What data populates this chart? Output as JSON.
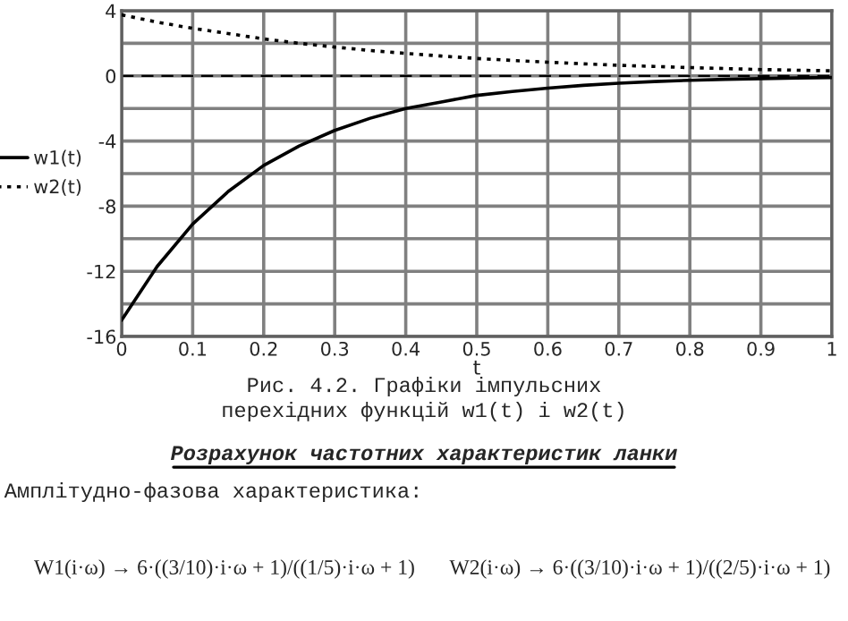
{
  "chart_data": {
    "type": "line",
    "xlabel": "t",
    "x": [
      0,
      0.05,
      0.1,
      0.15,
      0.2,
      0.25,
      0.3,
      0.35,
      0.4,
      0.45,
      0.5,
      0.55,
      0.6,
      0.65,
      0.7,
      0.75,
      0.8,
      0.85,
      0.9,
      0.95,
      1
    ],
    "series": [
      {
        "name": "w1(t)",
        "color": "#000000",
        "line_style": "solid",
        "values": [
          -15,
          -11.7,
          -9.1,
          -7.1,
          -5.5,
          -4.3,
          -3.35,
          -2.6,
          -2.0,
          -1.6,
          -1.2,
          -0.96,
          -0.75,
          -0.58,
          -0.45,
          -0.35,
          -0.27,
          -0.21,
          -0.17,
          -0.13,
          -0.1
        ]
      },
      {
        "name": "w2(t)",
        "color": "#000000",
        "line_style": "dotted",
        "values": [
          3.75,
          3.3,
          2.92,
          2.6,
          2.27,
          2.0,
          1.77,
          1.56,
          1.38,
          1.22,
          1.07,
          0.95,
          0.84,
          0.74,
          0.65,
          0.58,
          0.51,
          0.45,
          0.39,
          0.35,
          0.31
        ]
      }
    ],
    "xlim": [
      0,
      1
    ],
    "xticks": [
      0,
      0.1,
      0.2,
      0.3,
      0.4,
      0.5,
      0.6,
      0.7,
      0.8,
      0.9,
      1
    ],
    "ylim": [
      -16,
      4
    ],
    "yticks": [
      -16,
      {
        "value": -14,
        "label": null
      },
      -12,
      {
        "value": -10,
        "label": null
      },
      -8,
      {
        "value": -6,
        "label": null
      },
      -4,
      {
        "value": -2,
        "label": null
      },
      0,
      {
        "value": 2,
        "label": null
      },
      4
    ],
    "grid": true,
    "legend": "left",
    "ref_lines": [
      {
        "axis": "y",
        "value": 0,
        "line_style": "dashed"
      }
    ],
    "annotations": [
      "Рис. 4.2. Графіки імпульсних",
      "перехідних функцій w1(t) і w2(t)",
      "Розрахунок частотних характеристик ланки",
      "Амплітудно-фазова характеристика:",
      "W1(i·ω) → 6·((3/10)·i·ω + 1)/((1/5)·i·ω + 1)",
      "W2(i·ω) → 6·((3/10)·i·ω + 1)/((2/5)·i·ω + 1)"
    ]
  }
}
